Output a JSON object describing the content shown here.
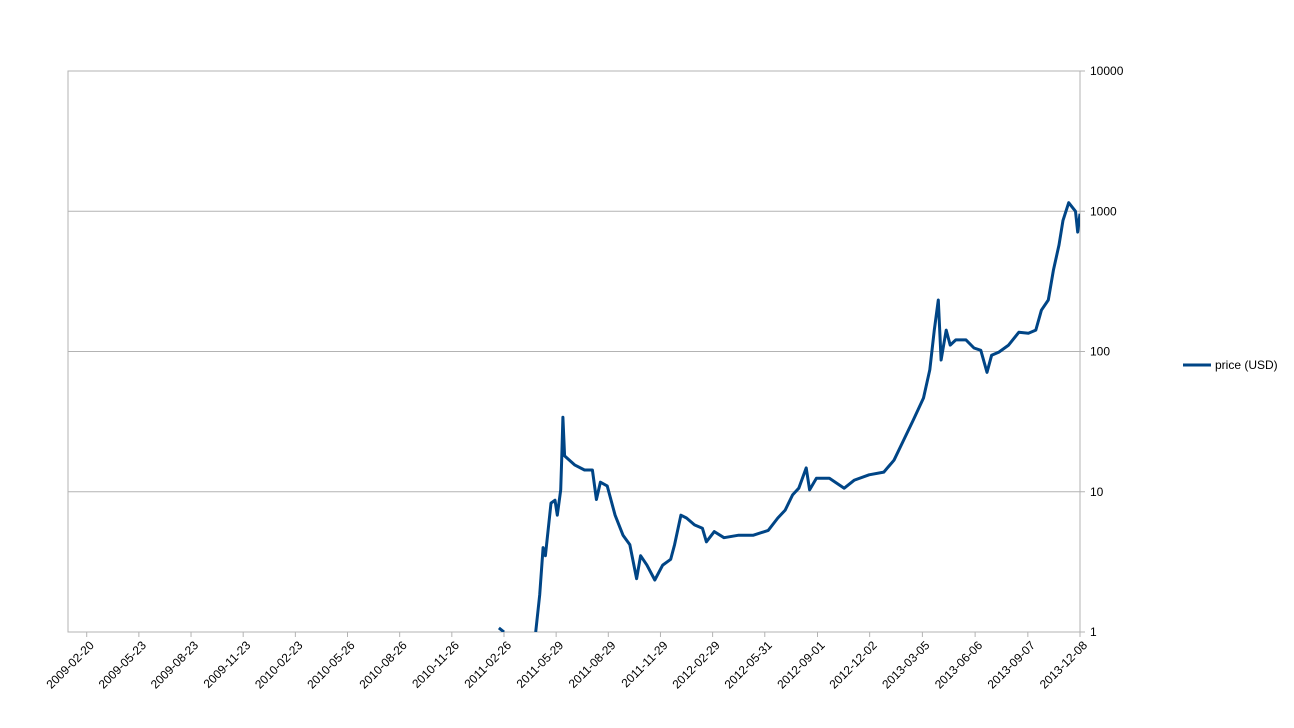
{
  "chart_data": {
    "type": "line",
    "log": true,
    "grid": true,
    "legend": "right",
    "xlim": [
      "2009-01-18",
      "2013-12-08"
    ],
    "xticks": [
      "2009-02-20",
      "2009-05-23",
      "2009-08-23",
      "2009-11-23",
      "2010-02-23",
      "2010-05-26",
      "2010-08-26",
      "2010-11-26",
      "2011-02-26",
      "2011-05-29",
      "2011-08-29",
      "2011-11-29",
      "2012-02-29",
      "2012-05-31",
      "2012-09-01",
      "2012-12-02",
      "2013-03-05",
      "2013-06-06",
      "2013-09-07",
      "2013-12-08"
    ],
    "ylim": [
      1,
      10000
    ],
    "yticks": [
      1,
      10,
      100,
      1000,
      10000
    ],
    "x": [
      "2011-02-17",
      "2011-02-26",
      "2011-03-25",
      "2011-04-23",
      "2011-04-30",
      "2011-05-06",
      "2011-05-10",
      "2011-05-20",
      "2011-05-27",
      "2011-05-31",
      "2011-06-06",
      "2011-06-08",
      "2011-06-10",
      "2011-06-13",
      "2011-07-01",
      "2011-07-18",
      "2011-08-01",
      "2011-08-08",
      "2011-08-15",
      "2011-08-27",
      "2011-09-10",
      "2011-09-24",
      "2011-10-06",
      "2011-10-18",
      "2011-10-25",
      "2011-11-05",
      "2011-11-19",
      "2011-12-03",
      "2011-12-17",
      "2011-12-24",
      "2012-01-04",
      "2012-01-14",
      "2012-01-28",
      "2012-02-11",
      "2012-02-18",
      "2012-03-03",
      "2012-03-20",
      "2012-04-15",
      "2012-05-11",
      "2012-06-06",
      "2012-06-23",
      "2012-07-06",
      "2012-07-19",
      "2012-07-30",
      "2012-08-12",
      "2012-08-18",
      "2012-08-30",
      "2012-09-22",
      "2012-10-18",
      "2012-11-05",
      "2012-12-01",
      "2012-12-27",
      "2013-01-14",
      "2013-01-31",
      "2013-02-17",
      "2013-03-07",
      "2013-03-18",
      "2013-03-26",
      "2013-04-02",
      "2013-04-07",
      "2013-04-16",
      "2013-04-23",
      "2013-05-03",
      "2013-05-21",
      "2013-06-04",
      "2013-06-16",
      "2013-06-27",
      "2013-07-05",
      "2013-07-18",
      "2013-08-04",
      "2013-08-22",
      "2013-09-08",
      "2013-09-21",
      "2013-10-01",
      "2013-10-13",
      "2013-10-22",
      "2013-11-01",
      "2013-11-08",
      "2013-11-18",
      "2013-11-30",
      "2013-12-04",
      "2013-12-08"
    ],
    "series": [
      {
        "name": "price (USD)",
        "color": "#004586",
        "values": [
          1.07,
          1.0,
          null,
          1.0,
          1.84,
          4.0,
          3.5,
          8.3,
          8.7,
          6.8,
          10.3,
          18,
          34,
          18,
          15.5,
          14.3,
          14.3,
          8.8,
          11.7,
          11,
          6.8,
          4.9,
          4.2,
          2.4,
          3.5,
          3.0,
          2.35,
          3.0,
          3.3,
          4.2,
          6.8,
          6.5,
          5.8,
          5.5,
          4.4,
          5.2,
          4.7,
          4.9,
          4.9,
          5.3,
          6.5,
          7.4,
          9.5,
          10.6,
          14.8,
          10.3,
          12.5,
          12.5,
          10.6,
          12.1,
          13.2,
          13.8,
          16.8,
          23.4,
          32.5,
          46.6,
          74,
          142,
          233,
          87,
          142,
          111,
          121,
          121,
          106,
          102,
          71,
          94,
          99,
          111,
          137,
          135,
          142,
          197,
          233,
          380,
          575,
          860,
          1150,
          1000,
          710,
          960
        ]
      }
    ]
  }
}
